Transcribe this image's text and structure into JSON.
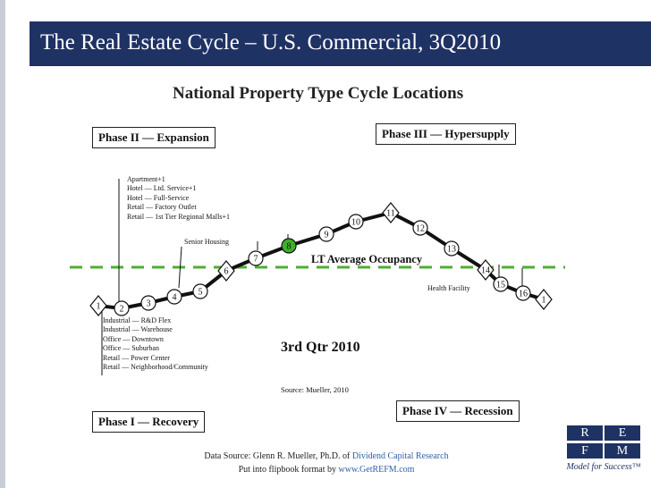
{
  "slide": {
    "title": "The Real Estate Cycle – U.S. Commercial, 3Q2010"
  },
  "chart": {
    "title": "National Property Type Cycle Locations",
    "phases": {
      "phase1": "Phase I — Recovery",
      "phase2": "Phase II — Expansion",
      "phase3": "Phase III — Hypersupply",
      "phase4": "Phase IV — Recession"
    },
    "top_labels": [
      "Apartment+1",
      "Hotel — Ltd. Service+1",
      "Hotel — Full-Service",
      "Retail — Factory Outlet",
      "Retail — 1st Tier Regional Malls+1"
    ],
    "bottom_labels": [
      "Industrial — R&D Flex",
      "Industrial — Warehouse",
      "Office — Downtown",
      "Office — Suburban",
      "Retail — Power Center",
      "Retail — Neighborhood/Community"
    ],
    "senior_housing": "Senior Housing",
    "health_facility": "Health Facility",
    "lt_average": "LT Average Occupancy",
    "quarter": "3rd Qtr 2010",
    "source": "Source: Mueller, 2010",
    "cycle_points": [
      "1",
      "2",
      "3",
      "4",
      "5",
      "6",
      "7",
      "8",
      "9",
      "10",
      "11",
      "12",
      "13",
      "14",
      "15",
      "16",
      "1"
    ],
    "highlight_point": "8",
    "highlight_color": "#3fae2a",
    "line_color": "#111111",
    "dash_color": "#4caf2f"
  },
  "footer": {
    "line1_prefix": "Data Source: Glenn R. Mueller, Ph.D. of ",
    "line1_link": "Dividend Capital Research",
    "line2_prefix": "Put into flipbook format by ",
    "line2_link": "www.GetREFM.com"
  },
  "logo": {
    "cells": [
      "R",
      "E",
      "F",
      "M"
    ],
    "tagline": "Model for Success™",
    "color": "#1f3264"
  }
}
